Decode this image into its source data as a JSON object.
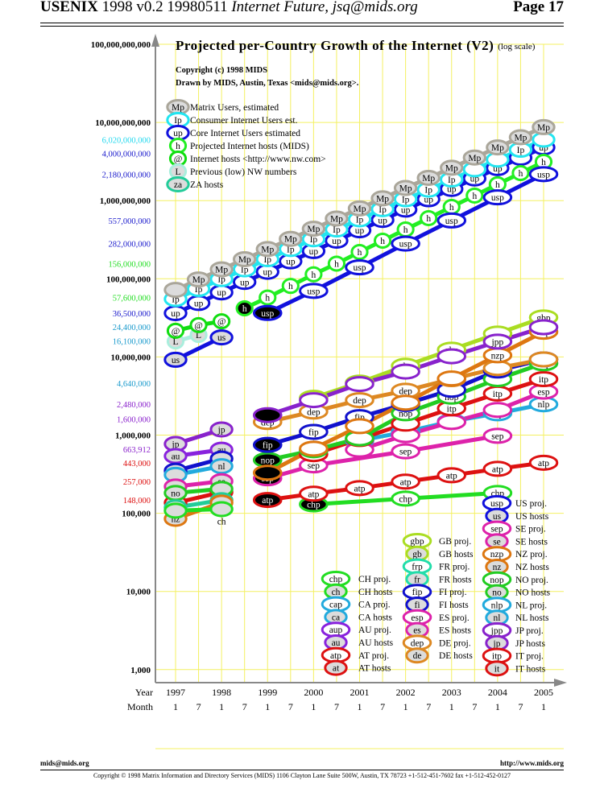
{
  "header": {
    "left_bold": "USENIX",
    "left_plain": " 1998 v0.2 19980511 ",
    "left_italic": "Internet Future, jsq@mids.org",
    "page": "Page 17"
  },
  "footer": {
    "email": "mids@mids.org",
    "url": "http://www.mids.org",
    "copyright": "Copyright © 1998 Matrix Information and Directory Services (MIDS) 1106 Clayton Lane Suite 500W, Austin, TX 78723 +1-512-451-7602 fax +1-512-452-0127"
  },
  "chart_data": {
    "type": "line",
    "title": "Projected per-Country Growth of the Internet (V2)",
    "subtitle": "(log scale)",
    "credits": [
      "Copyright (c) 1998 MIDS",
      "Drawn by MIDS, Austin, Texas <mids@mids.org>."
    ],
    "y_scale": "log",
    "ylim": [
      1000,
      100000000000
    ],
    "xlim": [
      1997,
      2005
    ],
    "grid": true,
    "x_axis": {
      "year_label": "Year",
      "month_label": "Month",
      "years": [
        "1997",
        "1998",
        "1999",
        "2000",
        "2001",
        "2002",
        "2003",
        "2004",
        "2005"
      ],
      "months": [
        "1",
        "7",
        "1",
        "7",
        "1",
        "7",
        "1",
        "7",
        "1",
        "7",
        "1",
        "7",
        "1",
        "7",
        "1",
        "7",
        "1"
      ]
    },
    "y_ticks": [
      {
        "label": "100,000,000,000",
        "value": 100000000000,
        "color": "#000000",
        "bold": true
      },
      {
        "label": "10,000,000,000",
        "value": 10000000000,
        "color": "#000000",
        "bold": true
      },
      {
        "label": "6,020,000,000",
        "value": 6020000000,
        "color": "#22d8ee"
      },
      {
        "label": "4,000,000,000",
        "value": 4000000000,
        "color": "#1a1acc"
      },
      {
        "label": "2,180,000,000",
        "value": 2180000000,
        "color": "#1a1acc"
      },
      {
        "label": "1,000,000,000",
        "value": 1000000000,
        "color": "#000000",
        "bold": true
      },
      {
        "label": "557,000,000",
        "value": 557000000,
        "color": "#1a1acc"
      },
      {
        "label": "282,000,000",
        "value": 282000000,
        "color": "#1a1acc"
      },
      {
        "label": "156,000,000",
        "value": 156000000,
        "color": "#22dd22"
      },
      {
        "label": "100,000,000",
        "value": 100000000,
        "color": "#000000",
        "bold": true
      },
      {
        "label": "57,600,000",
        "value": 57600000,
        "color": "#22dd22"
      },
      {
        "label": "36,500,000",
        "value": 36500000,
        "color": "#1a1acc"
      },
      {
        "label": "24,400,000",
        "value": 24400000,
        "color": "#1a9acc"
      },
      {
        "label": "16,100,000",
        "value": 16100000,
        "color": "#1a9acc"
      },
      {
        "label": "10,000,000",
        "value": 10000000,
        "color": "#000000",
        "bold": true
      },
      {
        "label": "4,640,000",
        "value": 4640000,
        "color": "#1a9acc"
      },
      {
        "label": "2,480,000",
        "value": 2480000,
        "color": "#8a22cc"
      },
      {
        "label": "1,600,000",
        "value": 1600000,
        "color": "#8a22cc"
      },
      {
        "label": "1,000,000",
        "value": 1000000,
        "color": "#000000",
        "bold": true
      },
      {
        "label": "663,912",
        "value": 663912,
        "color": "#8a22cc"
      },
      {
        "label": "443,000",
        "value": 443000,
        "color": "#dd1111"
      },
      {
        "label": "257,000",
        "value": 257000,
        "color": "#dd1111"
      },
      {
        "label": "148,000",
        "value": 148000,
        "color": "#dd1111"
      },
      {
        "label": "100,000",
        "value": 100000,
        "color": "#000000",
        "bold": true
      },
      {
        "label": "10,000",
        "value": 10000,
        "color": "#000000",
        "bold": true
      },
      {
        "label": "1,000",
        "value": 1000,
        "color": "#000000",
        "bold": true
      }
    ],
    "series": [
      {
        "code": "us",
        "color": "#1111dd",
        "hosts": true,
        "x": [
          1997,
          1998
        ],
        "values": [
          9200000,
          17800000
        ]
      },
      {
        "code": "L",
        "color": "#aaeedd",
        "hosts": true,
        "x": [
          1997,
          1997.5
        ],
        "values": [
          15800000,
          19100000
        ]
      },
      {
        "code": "@",
        "color": "#11dd11",
        "x": [
          1997,
          1997.5,
          1998
        ],
        "values": [
          21600000,
          25500000,
          28600000
        ]
      },
      {
        "code": "up",
        "color": "#1111dd",
        "x": [
          1997,
          1997.5,
          1998,
          1998.5,
          1999,
          1999.5,
          2000,
          2000.5,
          2001,
          2001.5,
          2002,
          2002.5,
          2003,
          2003.5,
          2004,
          2004.5,
          2005
        ],
        "values": [
          36300000,
          49000000,
          67000000,
          91000000,
          123000000,
          167000000,
          226000000,
          307000000,
          417000000,
          565000000,
          767000000,
          1040000000,
          1410000000,
          1920000000,
          2600000000,
          3530000000,
          4790000000
        ]
      },
      {
        "code": "Ip",
        "color": "#22e5f0",
        "x": [
          1997,
          1997.5,
          1998,
          1998.5,
          1999,
          1999.5,
          2000,
          2000.5,
          2001,
          2001.5,
          2002,
          2002.5,
          2003,
          2003.5,
          2004,
          2004.5,
          2005
        ],
        "values": [
          55000000,
          74000000,
          99000000,
          132000000,
          178000000,
          240000000,
          320000000,
          427000000,
          575000000,
          776000000,
          1040000000,
          1380000000,
          1860000000,
          2510000000,
          3350000000,
          4470000000,
          6020000000
        ]
      },
      {
        "code": "Mp",
        "color": "#aaa69a",
        "hosts": true,
        "x": [
          1997,
          1997.5,
          1998,
          1998.5,
          1999,
          1999.5,
          2000,
          2000.5,
          2001,
          2001.5,
          2002,
          2002.5,
          2003,
          2003.5,
          2004,
          2004.5,
          2005
        ],
        "values": [
          72000000,
          98000000,
          132000000,
          178000000,
          240000000,
          324000000,
          437000000,
          589000000,
          794000000,
          1070000000,
          1450000000,
          1950000000,
          2630000000,
          3550000000,
          4790000000,
          6460000000,
          8710000000
        ]
      },
      {
        "code": "h",
        "color": "#22ee22",
        "first_filled": true,
        "x": [
          1998.5,
          1999,
          1999.5,
          2000,
          2000.5,
          2001,
          2001.5,
          2002,
          2002.5,
          2003,
          2003.5,
          2004,
          2004.5,
          2005
        ],
        "values": [
          41900000,
          57600000,
          81000000,
          114000000,
          156000000,
          220000000,
          307000000,
          428000000,
          597000000,
          832000000,
          1160000000,
          1620000000,
          2250000000,
          3140000000
        ]
      },
      {
        "code": "usp",
        "color": "#1111dd",
        "first_filled": true,
        "x": [
          1999,
          2000,
          2001,
          2002,
          2003,
          2004,
          2005
        ],
        "values": [
          36500000,
          70000000,
          140000000,
          282000000,
          557000000,
          1100000000,
          2180000000
        ]
      },
      {
        "code": "jp",
        "color": "#8822cc",
        "hosts": true,
        "x": [
          1997,
          1998
        ],
        "values": [
          770000,
          1180000
        ]
      },
      {
        "code": "au",
        "color": "#8822dd",
        "hosts": true,
        "x": [
          1997,
          1998
        ],
        "values": [
          540000,
          650000
        ]
      },
      {
        "code": "fi",
        "color": "#1111cc",
        "hosts": true,
        "x": [
          1997,
          1998
        ],
        "values": [
          350000,
          500000
        ]
      },
      {
        "code": "nl",
        "color": "#22aadd",
        "hosts": true,
        "x": [
          1997,
          1998
        ],
        "values": [
          310000,
          400000
        ]
      },
      {
        "code": "se",
        "color": "#dd22aa",
        "hosts": true,
        "x": [
          1997,
          1998
        ],
        "values": [
          220000,
          257000
        ]
      },
      {
        "code": "at",
        "color": "#dd1111",
        "hosts": true,
        "x": [
          1997,
          1998
        ],
        "values": [
          136000,
          186000
        ]
      },
      {
        "code": "no",
        "color": "#22cc22",
        "hosts": true,
        "x": [
          1997,
          1998
        ],
        "values": [
          182000,
          205000
        ]
      },
      {
        "code": "za",
        "color": "#22cc99",
        "hosts": true,
        "x": [
          1997,
          1998
        ],
        "values": [
          119000,
          147000
        ]
      },
      {
        "code": "nz",
        "color": "#dd7711",
        "hosts": true,
        "x": [
          1997,
          1998
        ],
        "values": [
          85000,
          137000
        ]
      },
      {
        "code": "ch",
        "color": "#22dd22",
        "hosts": true,
        "x": [
          1997,
          1998
        ],
        "values": [
          108000,
          113000
        ]
      },
      {
        "code": "chp",
        "color": "#22dd22",
        "first_filled": true,
        "x": [
          2000,
          2002,
          2004
        ],
        "values": [
          130000,
          154000,
          182000
        ]
      },
      {
        "code": "atp",
        "color": "#dd1111",
        "first_filled": true,
        "x": [
          1999,
          2000,
          2001,
          2002,
          2003,
          2004,
          2005
        ],
        "values": [
          148000,
          178000,
          210000,
          254000,
          306000,
          370000,
          443000
        ]
      },
      {
        "code": "sep",
        "color": "#dd22aa",
        "first_filled": true,
        "x": [
          1999,
          2000,
          2002,
          2004
        ],
        "values": [
          280000,
          410000,
          620000,
          980000
        ]
      },
      {
        "code": "nlp",
        "color": "#22aadd",
        "x": [
          2000,
          2001,
          2002,
          2003,
          2004,
          2005
        ],
        "values": [
          640000,
          850000,
          1100000,
          1500000,
          1900000,
          2480000
        ]
      },
      {
        "code": "esp",
        "color": "#dd22aa",
        "x": [
          2001,
          2002,
          2003,
          2004,
          2005
        ],
        "values": [
          650000,
          1000000,
          1470000,
          2100000,
          3600000
        ]
      },
      {
        "code": "itp",
        "color": "#dd1111",
        "x": [
          2000,
          2001,
          2002,
          2003,
          2004,
          2005
        ],
        "values": [
          570000,
          890000,
          1400000,
          2200000,
          3400000,
          5200000
        ]
      },
      {
        "code": "nop",
        "color": "#22cc22",
        "first_filled": true,
        "x": [
          1999,
          2000,
          2001,
          2002,
          2003,
          2004,
          2005
        ],
        "values": [
          480000,
          640000,
          910000,
          1900000,
          3100000,
          5200000,
          8300000
        ]
      },
      {
        "code": "fip",
        "color": "#1111cc",
        "first_filled": true,
        "x": [
          1999,
          2000,
          2001,
          2002,
          2003,
          2004,
          2005
        ],
        "values": [
          750000,
          1100000,
          1700000,
          2500000,
          3800000,
          6700000,
          9300000
        ]
      },
      {
        "code": "dep",
        "color": "#dd8822",
        "x": [
          1999,
          2000,
          2001,
          2002,
          2003,
          2004,
          2005
        ],
        "values": [
          1470000,
          2000000,
          2800000,
          3700000,
          5200000,
          7200000,
          9300000
        ]
      },
      {
        "code": "nzp",
        "color": "#dd7711",
        "first_filled": true,
        "x": [
          1999,
          2000,
          2001,
          2002,
          2003,
          2004,
          2005
        ],
        "values": [
          330000,
          670000,
          1300000,
          2600000,
          5300000,
          10500000,
          21000000
        ]
      },
      {
        "code": "gbp",
        "color": "#aadd22",
        "x": [
          2000,
          2001,
          2002,
          2003,
          2004,
          2005
        ],
        "values": [
          3000000,
          4700000,
          7700000,
          12400000,
          19900000,
          32000000
        ]
      },
      {
        "code": "jpp",
        "color": "#8822cc",
        "first_filled": true,
        "x": [
          1999,
          2000,
          2001,
          2002,
          2003,
          2004,
          2005
        ],
        "values": [
          1800000,
          2800000,
          4500000,
          6500000,
          10200000,
          15700000,
          24000000
        ]
      }
    ]
  },
  "top_legend": [
    {
      "code": "Mp",
      "label": "Matrix Users, estimated",
      "color": "#aaa69a",
      "hosts": true
    },
    {
      "code": "Ip",
      "label": "Consumer Internet Users est.",
      "color": "#22e5f0"
    },
    {
      "code": "up",
      "label": "Core Internet Users estimated",
      "color": "#1111dd"
    },
    {
      "code": "h",
      "label": "Projected Internet hosts (MIDS)",
      "color": "#22ee22"
    },
    {
      "code": "@",
      "label": "Internet hosts <http://www.nw.com>",
      "color": "#11dd11"
    },
    {
      "code": "L",
      "label": "Previous (low) NW numbers",
      "color": "#aaeedd",
      "hosts": true
    },
    {
      "code": "za",
      "label": "ZA hosts",
      "color": "#22cc99",
      "hosts": true
    }
  ],
  "bottom_legend": [
    [
      {
        "code": "chp",
        "label": "CH proj.",
        "color": "#22dd22"
      },
      {
        "code": "ch",
        "label": "CH hosts",
        "color": "#22dd22",
        "hosts": true
      },
      {
        "code": "cap",
        "label": "CA proj.",
        "color": "#22aadd"
      },
      {
        "code": "ca",
        "label": "CA hosts",
        "color": "#22aadd",
        "hosts": true
      },
      {
        "code": "aup",
        "label": "AU proj.",
        "color": "#8822dd"
      },
      {
        "code": "au",
        "label": "AU hosts",
        "color": "#8822dd",
        "hosts": true
      },
      {
        "code": "atp",
        "label": "AT proj.",
        "color": "#dd1111"
      },
      {
        "code": "at",
        "label": "AT hosts",
        "color": "#dd1111",
        "hosts": true
      }
    ],
    [
      {
        "code": "gbp",
        "label": "GB proj.",
        "color": "#aadd22"
      },
      {
        "code": "gb",
        "label": "GB hosts",
        "color": "#aadd22",
        "hosts": true
      },
      {
        "code": "frp",
        "label": "FR proj.",
        "color": "#22ddaa"
      },
      {
        "code": "fr",
        "label": "FR hosts",
        "color": "#22ddaa",
        "hosts": true
      },
      {
        "code": "fip",
        "label": "FI proj.",
        "color": "#1111cc"
      },
      {
        "code": "fi",
        "label": "FI hosts",
        "color": "#1111cc",
        "hosts": true
      },
      {
        "code": "esp",
        "label": "ES proj.",
        "color": "#dd22aa"
      },
      {
        "code": "es",
        "label": "ES hosts",
        "color": "#dd22aa",
        "hosts": true
      },
      {
        "code": "dep",
        "label": "DE proj.",
        "color": "#dd8822"
      },
      {
        "code": "de",
        "label": "DE hosts",
        "color": "#dd8822",
        "hosts": true
      }
    ],
    [
      {
        "code": "usp",
        "label": "US proj.",
        "color": "#1111dd"
      },
      {
        "code": "us",
        "label": "US hosts",
        "color": "#1111dd",
        "hosts": true
      },
      {
        "code": "sep",
        "label": "SE proj.",
        "color": "#dd22aa"
      },
      {
        "code": "se",
        "label": "SE hosts",
        "color": "#dd22aa",
        "hosts": true
      },
      {
        "code": "nzp",
        "label": "NZ proj.",
        "color": "#dd7711"
      },
      {
        "code": "nz",
        "label": "NZ hosts",
        "color": "#dd7711",
        "hosts": true
      },
      {
        "code": "nop",
        "label": "NO proj.",
        "color": "#22cc22"
      },
      {
        "code": "no",
        "label": "NO hosts",
        "color": "#22cc22",
        "hosts": true
      },
      {
        "code": "nlp",
        "label": "NL proj.",
        "color": "#22aadd"
      },
      {
        "code": "nl",
        "label": "NL hosts",
        "color": "#22aadd",
        "hosts": true
      },
      {
        "code": "jpp",
        "label": "JP proj.",
        "color": "#8822cc"
      },
      {
        "code": "jp",
        "label": "JP hosts",
        "color": "#8822cc",
        "hosts": true
      },
      {
        "code": "itp",
        "label": "IT proj.",
        "color": "#dd1111"
      },
      {
        "code": "it",
        "label": "IT hosts",
        "color": "#dd1111",
        "hosts": true
      }
    ]
  ]
}
